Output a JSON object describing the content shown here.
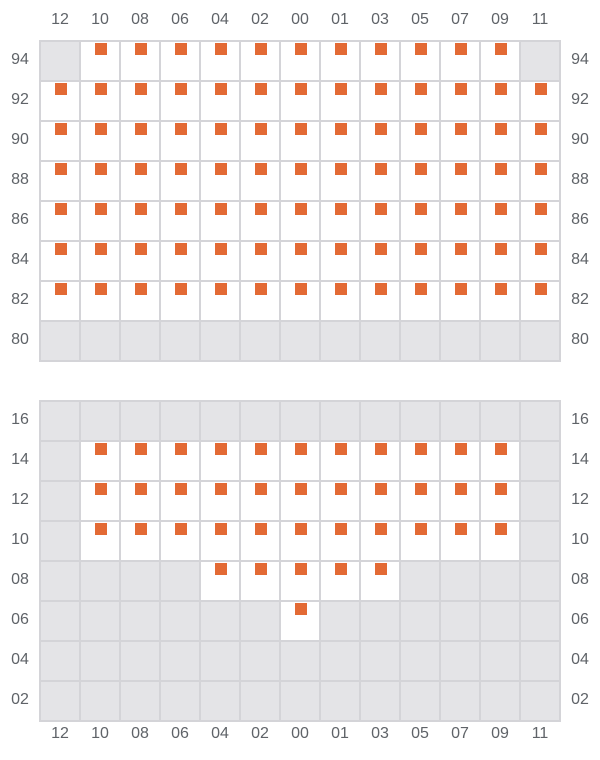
{
  "columns": [
    "12",
    "10",
    "08",
    "06",
    "04",
    "02",
    "00",
    "01",
    "03",
    "05",
    "07",
    "09",
    "11"
  ],
  "colors": {
    "marker": "#e36a34",
    "unavailable": "#e4e4e7",
    "available": "#ffffff",
    "border": "#d4d4d8"
  },
  "sections": [
    {
      "name": "upper",
      "rows": [
        {
          "label": "94",
          "cells": [
            0,
            1,
            1,
            1,
            1,
            1,
            1,
            1,
            1,
            1,
            1,
            1,
            0
          ]
        },
        {
          "label": "92",
          "cells": [
            1,
            1,
            1,
            1,
            1,
            1,
            1,
            1,
            1,
            1,
            1,
            1,
            1
          ]
        },
        {
          "label": "90",
          "cells": [
            1,
            1,
            1,
            1,
            1,
            1,
            1,
            1,
            1,
            1,
            1,
            1,
            1
          ]
        },
        {
          "label": "88",
          "cells": [
            1,
            1,
            1,
            1,
            1,
            1,
            1,
            1,
            1,
            1,
            1,
            1,
            1
          ]
        },
        {
          "label": "86",
          "cells": [
            1,
            1,
            1,
            1,
            1,
            1,
            1,
            1,
            1,
            1,
            1,
            1,
            1
          ]
        },
        {
          "label": "84",
          "cells": [
            1,
            1,
            1,
            1,
            1,
            1,
            1,
            1,
            1,
            1,
            1,
            1,
            1
          ]
        },
        {
          "label": "82",
          "cells": [
            1,
            1,
            1,
            1,
            1,
            1,
            1,
            1,
            1,
            1,
            1,
            1,
            1
          ]
        },
        {
          "label": "80",
          "cells": [
            0,
            0,
            0,
            0,
            0,
            0,
            0,
            0,
            0,
            0,
            0,
            0,
            0
          ]
        }
      ]
    },
    {
      "name": "lower",
      "rows": [
        {
          "label": "16",
          "cells": [
            0,
            0,
            0,
            0,
            0,
            0,
            0,
            0,
            0,
            0,
            0,
            0,
            0
          ]
        },
        {
          "label": "14",
          "cells": [
            0,
            1,
            1,
            1,
            1,
            1,
            1,
            1,
            1,
            1,
            1,
            1,
            0
          ]
        },
        {
          "label": "12",
          "cells": [
            0,
            1,
            1,
            1,
            1,
            1,
            1,
            1,
            1,
            1,
            1,
            1,
            0
          ]
        },
        {
          "label": "10",
          "cells": [
            0,
            1,
            1,
            1,
            1,
            1,
            1,
            1,
            1,
            1,
            1,
            1,
            0
          ]
        },
        {
          "label": "08",
          "cells": [
            0,
            0,
            0,
            0,
            1,
            1,
            1,
            1,
            1,
            0,
            0,
            0,
            0
          ]
        },
        {
          "label": "06",
          "cells": [
            0,
            0,
            0,
            0,
            0,
            0,
            1,
            0,
            0,
            0,
            0,
            0,
            0
          ]
        },
        {
          "label": "04",
          "cells": [
            0,
            0,
            0,
            0,
            0,
            0,
            0,
            0,
            0,
            0,
            0,
            0,
            0
          ]
        },
        {
          "label": "02",
          "cells": [
            0,
            0,
            0,
            0,
            0,
            0,
            0,
            0,
            0,
            0,
            0,
            0,
            0
          ]
        }
      ]
    }
  ]
}
